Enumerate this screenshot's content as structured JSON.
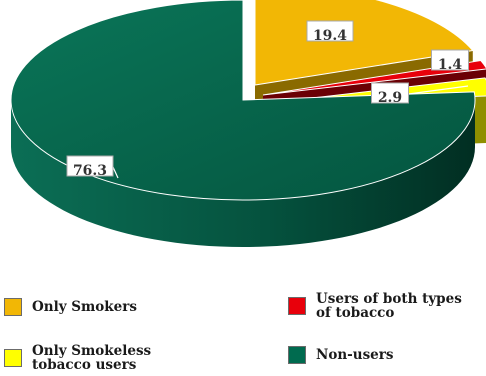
{
  "chart_data": {
    "type": "pie",
    "style": "3d-exploded",
    "categories": [
      "Only Smokers",
      "Users of both types of tobacco",
      "Only Smokeless tobacco users",
      "Non-users"
    ],
    "values": [
      19.4,
      1.4,
      2.9,
      76.3
    ],
    "data_labels": [
      "19.4",
      "1.4",
      "2.9",
      "76.3"
    ],
    "colors": [
      "#f2b705",
      "#e8000b",
      "#ffff00",
      "#006b4f"
    ],
    "legend_placement": "bottom",
    "title": ""
  },
  "legend": {
    "items": [
      {
        "label_lines": [
          "Only Smokers"
        ],
        "color": "#f2b705"
      },
      {
        "label_lines": [
          "Users of both types",
          "of tobacco"
        ],
        "color": "#e8000b"
      },
      {
        "label_lines": [
          "Only Smokeless",
          "tobacco users"
        ],
        "color": "#ffff00"
      },
      {
        "label_lines": [
          "Non-users"
        ],
        "color": "#006b4f"
      }
    ]
  }
}
